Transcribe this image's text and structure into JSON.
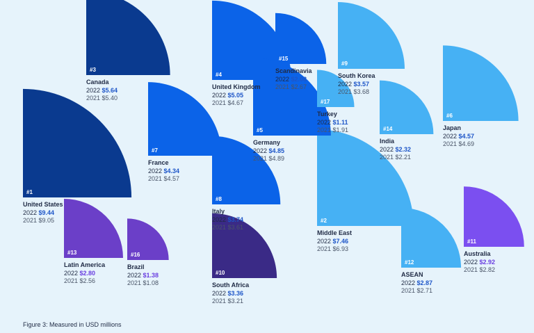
{
  "chart_data": {
    "type": "quarter-circle bubble",
    "unit_note": "Measured in USD millions",
    "regions": [
      {
        "rank": "#1",
        "name": "United States",
        "label_2022": "2022",
        "value_2022": "$9.44",
        "label_2021": "2021",
        "value_2021": "$9.05",
        "v2022": 9.44,
        "v2021": 9.05,
        "color": "#0a3a8f",
        "value_color": "#1e56c8"
      },
      {
        "rank": "#2",
        "name": "Middle East",
        "label_2022": "2022",
        "value_2022": "$7.46",
        "label_2021": "2021",
        "value_2021": "$6.93",
        "v2022": 7.46,
        "v2021": 6.93,
        "color": "#46b1f4",
        "value_color": "#1e56c8"
      },
      {
        "rank": "#3",
        "name": "Canada",
        "label_2022": "2022",
        "value_2022": "$5.64",
        "label_2021": "2021",
        "value_2021": "$5.40",
        "v2022": 5.64,
        "v2021": 5.4,
        "color": "#0a3a8f",
        "value_color": "#1e56c8"
      },
      {
        "rank": "#4",
        "name": "United Kingdom",
        "label_2022": "2022",
        "value_2022": "$5.05",
        "label_2021": "2021",
        "value_2021": "$4.67",
        "v2022": 5.05,
        "v2021": 4.67,
        "color": "#0b63e8",
        "value_color": "#1e56c8"
      },
      {
        "rank": "#5",
        "name": "Germany",
        "label_2022": "2022",
        "value_2022": "$4.85",
        "label_2021": "2021",
        "value_2021": "$4.89",
        "v2022": 4.85,
        "v2021": 4.89,
        "color": "#0b63e8",
        "value_color": "#1e56c8"
      },
      {
        "rank": "#6",
        "name": "Japan",
        "label_2022": "2022",
        "value_2022": "$4.57",
        "label_2021": "2021",
        "value_2021": "$4.69",
        "v2022": 4.57,
        "v2021": 4.69,
        "color": "#46b1f4",
        "value_color": "#1e56c8"
      },
      {
        "rank": "#7",
        "name": "France",
        "label_2022": "2022",
        "value_2022": "$4.34",
        "label_2021": "2021",
        "value_2021": "$4.57",
        "v2022": 4.34,
        "v2021": 4.57,
        "color": "#0b63e8",
        "value_color": "#1e56c8"
      },
      {
        "rank": "#8",
        "name": "Italy",
        "label_2022": "2022",
        "value_2022": "$3.74",
        "label_2021": "2021",
        "value_2021": "$3.61",
        "v2022": 3.74,
        "v2021": 3.61,
        "color": "#0b63e8",
        "value_color": "#1e56c8"
      },
      {
        "rank": "#9",
        "name": "South Korea",
        "label_2022": "2022",
        "value_2022": "$3.57",
        "label_2021": "2021",
        "value_2021": "$3.68",
        "v2022": 3.57,
        "v2021": 3.68,
        "color": "#46b1f4",
        "value_color": "#1e56c8"
      },
      {
        "rank": "#10",
        "name": "South Africa",
        "label_2022": "2022",
        "value_2022": "$3.36",
        "label_2021": "2021",
        "value_2021": "$3.21",
        "v2022": 3.36,
        "v2021": 3.21,
        "color": "#3a2a86",
        "value_color": "#1e56c8"
      },
      {
        "rank": "#11",
        "name": "Australia",
        "label_2022": "2022",
        "value_2022": "$2.92",
        "label_2021": "2021",
        "value_2021": "$2.82",
        "v2022": 2.92,
        "v2021": 2.82,
        "color": "#7b4ff0",
        "value_color": "#6a3fe0"
      },
      {
        "rank": "#12",
        "name": "ASEAN",
        "label_2022": "2022",
        "value_2022": "$2.87",
        "label_2021": "2021",
        "value_2021": "$2.71",
        "v2022": 2.87,
        "v2021": 2.71,
        "color": "#46b1f4",
        "value_color": "#1e56c8"
      },
      {
        "rank": "#13",
        "name": "Latin America",
        "label_2022": "2022",
        "value_2022": "$2.80",
        "label_2021": "2021",
        "value_2021": "$2.56",
        "v2022": 2.8,
        "v2021": 2.56,
        "color": "#6b3fc8",
        "value_color": "#6a3fe0"
      },
      {
        "rank": "#14",
        "name": "India",
        "label_2022": "2022",
        "value_2022": "$2.32",
        "label_2021": "2021",
        "value_2021": "$2.21",
        "v2022": 2.32,
        "v2021": 2.21,
        "color": "#46b1f4",
        "value_color": "#1e56c8"
      },
      {
        "rank": "#15",
        "name": "Scandinavia",
        "label_2022": "2022",
        "value_2022": "$2.08",
        "label_2021": "2021",
        "value_2021": "$2.67",
        "v2022": 2.08,
        "v2021": 2.67,
        "color": "#0b63e8",
        "value_color": "#1e56c8"
      },
      {
        "rank": "#16",
        "name": "Brazil",
        "label_2022": "2022",
        "value_2022": "$1.38",
        "label_2021": "2021",
        "value_2021": "$1.08",
        "v2022": 1.38,
        "v2021": 1.08,
        "color": "#6b3fc8",
        "value_color": "#6a3fe0"
      },
      {
        "rank": "#17",
        "name": "Turkey",
        "label_2022": "2022",
        "value_2022": "$1.11",
        "label_2021": "2021",
        "value_2021": "$1.91",
        "v2022": 1.11,
        "v2021": 1.91,
        "color": "#46b1f4",
        "value_color": "#1e56c8"
      }
    ]
  },
  "caption": "Figure 3: Measured in USD millions"
}
